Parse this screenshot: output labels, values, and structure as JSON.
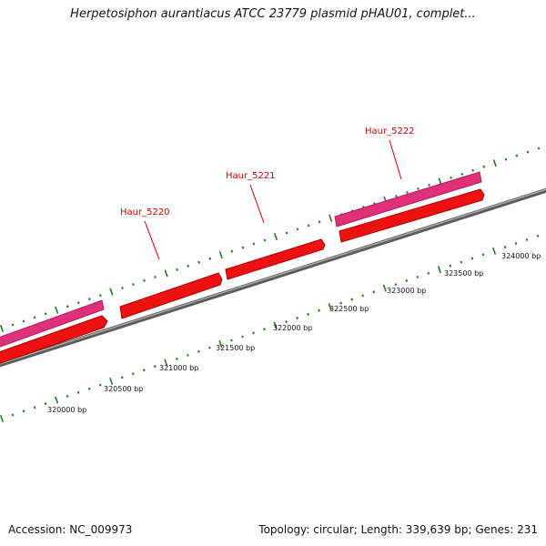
{
  "header": {
    "title": "Herpetosiphon aurantiacus ATCC 23779 plasmid pHAU01, complet..."
  },
  "footer": {
    "accession": "Accession: NC_009973",
    "summary": "Topology: circular; Length: 339,639 bp; Genes: 231"
  },
  "colors": {
    "forward_gene": "#e0307a",
    "reverse_gene": "#ee1111",
    "backbone": "#7a7a7a",
    "ticks": "#1d7a1d",
    "label": "#cc0000"
  },
  "map": {
    "bp_labels": [
      {
        "text": "320000 bp",
        "bp": 320000
      },
      {
        "text": "320500 bp",
        "bp": 320500
      },
      {
        "text": "321000 bp",
        "bp": 321000
      },
      {
        "text": "321500 bp",
        "bp": 321500
      },
      {
        "text": "322000 bp",
        "bp": 322000
      },
      {
        "text": "322500 bp",
        "bp": 322500
      },
      {
        "text": "323000 bp",
        "bp": 323000
      },
      {
        "text": "323500 bp",
        "bp": 323500
      },
      {
        "text": "324000 bp",
        "bp": 324000
      }
    ],
    "gene_labels": [
      {
        "name": "Haur_5220"
      },
      {
        "name": "Haur_5221"
      },
      {
        "name": "Haur_5222"
      }
    ]
  }
}
